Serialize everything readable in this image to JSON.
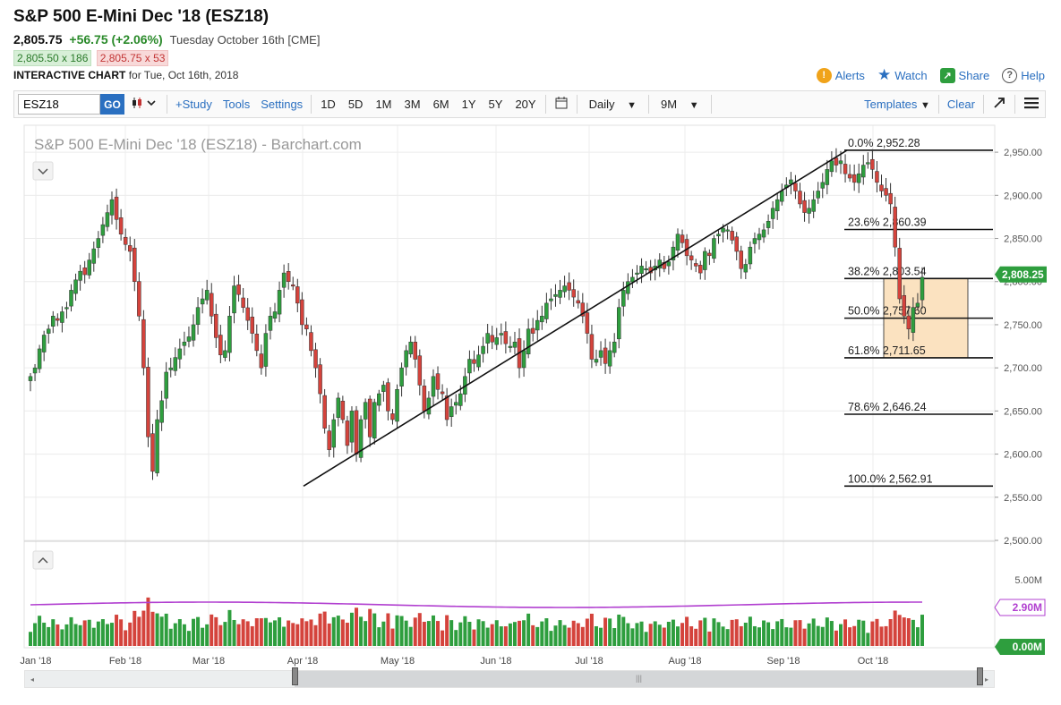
{
  "header": {
    "title": "S&P 500 E-Mini Dec '18 (ESZ18)",
    "last": "2,805.75",
    "change": "+56.75 (+2.06%)",
    "date": "Tuesday October 16th [CME]",
    "bid": "2,805.50 x 186",
    "ask": "2,805.75 x 53",
    "chart_label_bold": "INTERACTIVE CHART",
    "chart_label_rest": "for Tue, Oct 16th, 2018"
  },
  "actions": {
    "alerts": "Alerts",
    "watch": "Watch",
    "share": "Share",
    "help": "Help"
  },
  "toolbar": {
    "symbol": "ESZ18",
    "go": "GO",
    "study": "+Study",
    "tools": "Tools",
    "settings": "Settings",
    "ranges": [
      "1D",
      "5D",
      "1M",
      "3M",
      "6M",
      "1Y",
      "5Y",
      "20Y"
    ],
    "interval": "Daily",
    "period": "9M",
    "templates": "Templates",
    "clear": "Clear"
  },
  "colors": {
    "up": "#2e9e3e",
    "down": "#d4433c",
    "accent": "#2a6fc0",
    "ma": "#b13fd0",
    "fib_box": "#fbe2c0"
  },
  "chart_data": {
    "type": "candlestick",
    "title": "S&P 500 E-Mini Dec '18 (ESZ18) - Barchart.com",
    "ylim": [
      2500,
      2975
    ],
    "yticks": [
      "2,950.00",
      "2,900.00",
      "2,850.00",
      "2,800.00",
      "2,750.00",
      "2,700.00",
      "2,650.00",
      "2,600.00",
      "2,550.00",
      "2,500.00"
    ],
    "x_labels": [
      "Jan '18",
      "Feb '18",
      "Mar '18",
      "Apr '18",
      "May '18",
      "Jun '18",
      "Jul '18",
      "Aug '18",
      "Sep '18",
      "Oct '18"
    ],
    "price_marker": "2,808.25",
    "fib_levels": [
      {
        "label": "0.0% 2,952.28",
        "value": 2952.28
      },
      {
        "label": "23.6% 2,860.39",
        "value": 2860.39
      },
      {
        "label": "38.2% 2,803.54",
        "value": 2803.54
      },
      {
        "label": "50.0% 2,757.60",
        "value": 2757.6
      },
      {
        "label": "61.8% 2,711.65",
        "value": 2711.65
      },
      {
        "label": "78.6% 2,646.24",
        "value": 2646.24
      },
      {
        "label": "100.0% 2,562.91",
        "value": 2562.91
      }
    ],
    "trendline": {
      "from_date": "2018-04-02",
      "from": 2562.91,
      "to_date": "2018-09-21",
      "to": 2952.28
    },
    "closes": [
      2690,
      2700,
      2722,
      2738,
      2745,
      2760,
      2755,
      2765,
      2770,
      2790,
      2802,
      2812,
      2808,
      2825,
      2838,
      2850,
      2866,
      2880,
      2895,
      2872,
      2855,
      2843,
      2835,
      2800,
      2760,
      2700,
      2620,
      2580,
      2640,
      2662,
      2695,
      2700,
      2712,
      2722,
      2730,
      2736,
      2750,
      2770,
      2780,
      2790,
      2760,
      2735,
      2715,
      2720,
      2760,
      2795,
      2785,
      2770,
      2755,
      2740,
      2720,
      2700,
      2740,
      2760,
      2765,
      2790,
      2810,
      2800,
      2795,
      2775,
      2750,
      2745,
      2720,
      2700,
      2670,
      2630,
      2605,
      2640,
      2665,
      2640,
      2610,
      2650,
      2600,
      2640,
      2660,
      2620,
      2660,
      2670,
      2680,
      2650,
      2640,
      2675,
      2700,
      2720,
      2730,
      2710,
      2680,
      2650,
      2665,
      2690,
      2675,
      2670,
      2640,
      2655,
      2660,
      2670,
      2690,
      2710,
      2705,
      2715,
      2725,
      2740,
      2730,
      2735,
      2740,
      2728,
      2725,
      2730,
      2700,
      2720,
      2745,
      2740,
      2755,
      2760,
      2775,
      2780,
      2785,
      2790,
      2795,
      2790,
      2782,
      2775,
      2760,
      2740,
      2710,
      2710,
      2720,
      2705,
      2720,
      2730,
      2770,
      2790,
      2800,
      2805,
      2810,
      2818,
      2815,
      2810,
      2818,
      2825,
      2815,
      2823,
      2840,
      2855,
      2845,
      2830,
      2825,
      2818,
      2810,
      2835,
      2830,
      2850,
      2855,
      2862,
      2860,
      2848,
      2835,
      2815,
      2820,
      2840,
      2850,
      2855,
      2860,
      2870,
      2885,
      2895,
      2905,
      2912,
      2918,
      2905,
      2890,
      2880,
      2885,
      2895,
      2905,
      2915,
      2930,
      2940,
      2935,
      2940,
      2925,
      2920,
      2915,
      2925,
      2935,
      2938,
      2930,
      2915,
      2905,
      2900,
      2890,
      2840,
      2780,
      2760,
      2745,
      2770,
      2775,
      2805
    ],
    "volume_axis": [
      "5.00M",
      "2.90M",
      "0.00M"
    ]
  }
}
